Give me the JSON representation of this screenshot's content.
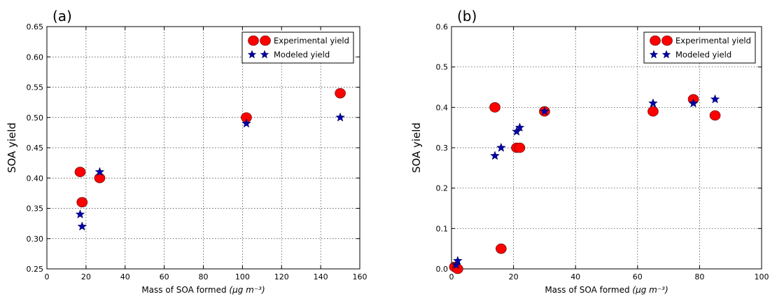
{
  "chart_data": [
    {
      "type": "scatter",
      "panel_label": "(a)",
      "xlabel": "Mass of SOA formed ",
      "xlabel_unit": "(μg m⁻³)",
      "ylabel": "SOA yield",
      "xlim": [
        0,
        160
      ],
      "ylim": [
        0.25,
        0.65
      ],
      "xticks": [
        "0",
        "20",
        "40",
        "60",
        "80",
        "100",
        "120",
        "140",
        "160"
      ],
      "yticks": [
        "0.25",
        "0.30",
        "0.35",
        "0.40",
        "0.45",
        "0.50",
        "0.55",
        "0.60",
        "0.65"
      ],
      "grid": true,
      "legend_position": "top-right",
      "series": [
        {
          "name": "Experimental yield",
          "marker": "circle",
          "color": "#ff0000",
          "points": [
            [
              17,
              0.41
            ],
            [
              18,
              0.36
            ],
            [
              27,
              0.4
            ],
            [
              102,
              0.5
            ],
            [
              150,
              0.54
            ]
          ]
        },
        {
          "name": "Modeled yield",
          "marker": "star",
          "color": "#0000aa",
          "points": [
            [
              17,
              0.34
            ],
            [
              18,
              0.32
            ],
            [
              27,
              0.41
            ],
            [
              102,
              0.49
            ],
            [
              150,
              0.5
            ]
          ]
        }
      ]
    },
    {
      "type": "scatter",
      "panel_label": "(b)",
      "xlabel": "Mass of SOA formed ",
      "xlabel_unit": "(μg m⁻³)",
      "ylabel": "SOA yield",
      "xlim": [
        0,
        100
      ],
      "ylim": [
        0.0,
        0.6
      ],
      "xticks": [
        "0",
        "20",
        "40",
        "60",
        "80",
        "100"
      ],
      "yticks": [
        "0.0",
        "0.1",
        "0.2",
        "0.3",
        "0.4",
        "0.5",
        "0.6"
      ],
      "grid": true,
      "legend_position": "top-right",
      "series": [
        {
          "name": "Experimental yield",
          "marker": "circle",
          "color": "#ff0000",
          "points": [
            [
              1,
              0.005
            ],
            [
              2,
              0.0
            ],
            [
              14,
              0.4
            ],
            [
              16,
              0.05
            ],
            [
              21,
              0.3
            ],
            [
              22,
              0.3
            ],
            [
              30,
              0.39
            ],
            [
              65,
              0.39
            ],
            [
              78,
              0.42
            ],
            [
              85,
              0.38
            ]
          ]
        },
        {
          "name": "Modeled yield",
          "marker": "star",
          "color": "#0000aa",
          "points": [
            [
              1.5,
              0.01
            ],
            [
              2,
              0.02
            ],
            [
              14,
              0.28
            ],
            [
              16,
              0.3
            ],
            [
              21,
              0.34
            ],
            [
              22,
              0.35
            ],
            [
              30,
              0.39
            ],
            [
              65,
              0.41
            ],
            [
              78,
              0.41
            ],
            [
              85,
              0.42
            ]
          ]
        }
      ]
    }
  ]
}
